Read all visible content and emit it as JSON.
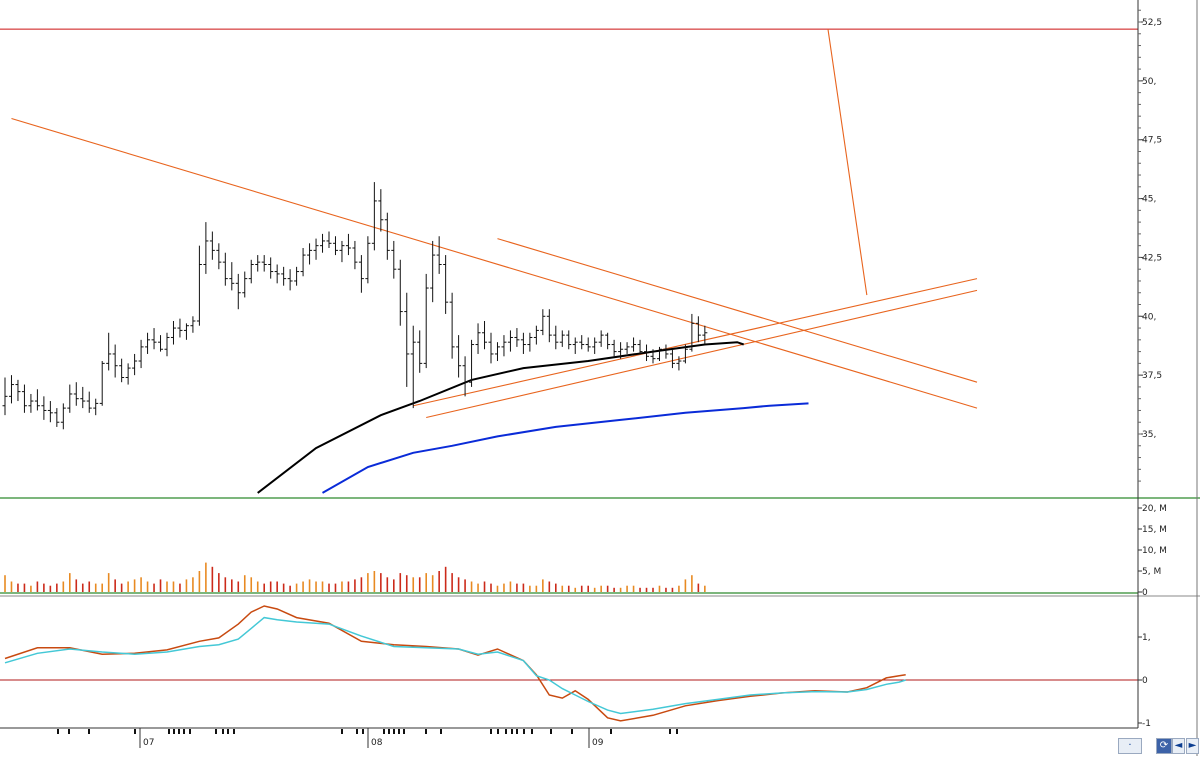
{
  "chart_data": [
    {
      "type": "candlestick",
      "panel": "price",
      "x_tick_labels": [
        "07",
        "08",
        "09"
      ],
      "y_tick_labels": [
        "52,5",
        "50,",
        "47,5",
        "45,",
        "42,5",
        "40,",
        "37,5",
        "35,"
      ],
      "ylim": [
        32.5,
        53
      ],
      "bars": [
        [
          36.2,
          37.4,
          35.8,
          36.6
        ],
        [
          36.6,
          37.5,
          36.3,
          37.1
        ],
        [
          37.1,
          37.3,
          36.4,
          36.8
        ],
        [
          36.8,
          37.1,
          35.9,
          36.2
        ],
        [
          36.2,
          36.7,
          35.9,
          36.4
        ],
        [
          36.4,
          36.9,
          36.0,
          36.2
        ],
        [
          36.2,
          36.6,
          35.6,
          36.0
        ],
        [
          36.0,
          36.4,
          35.5,
          35.9
        ],
        [
          35.9,
          36.1,
          35.3,
          35.5
        ],
        [
          35.5,
          36.3,
          35.2,
          36.1
        ],
        [
          36.1,
          37.1,
          35.9,
          36.7
        ],
        [
          36.7,
          37.2,
          36.2,
          36.5
        ],
        [
          36.5,
          37.0,
          36.1,
          36.4
        ],
        [
          36.4,
          36.8,
          35.9,
          36.1
        ],
        [
          36.1,
          36.5,
          35.8,
          36.3
        ],
        [
          36.3,
          38.1,
          36.2,
          38.0
        ],
        [
          38.0,
          39.3,
          37.7,
          38.4
        ],
        [
          38.4,
          38.8,
          37.4,
          37.9
        ],
        [
          37.9,
          38.2,
          37.2,
          37.4
        ],
        [
          37.4,
          38.0,
          37.1,
          37.8
        ],
        [
          37.8,
          38.4,
          37.5,
          38.1
        ],
        [
          38.1,
          39.0,
          37.8,
          38.7
        ],
        [
          38.7,
          39.3,
          38.4,
          39.0
        ],
        [
          39.0,
          39.5,
          38.6,
          38.9
        ],
        [
          38.9,
          39.2,
          38.5,
          38.6
        ],
        [
          38.6,
          39.3,
          38.3,
          39.1
        ],
        [
          39.1,
          39.8,
          38.8,
          39.5
        ],
        [
          39.5,
          39.9,
          39.1,
          39.4
        ],
        [
          39.4,
          39.7,
          39.0,
          39.6
        ],
        [
          39.6,
          40.0,
          39.3,
          39.8
        ],
        [
          39.8,
          43.0,
          39.6,
          42.2
        ],
        [
          42.2,
          44.0,
          41.8,
          43.2
        ],
        [
          43.2,
          43.6,
          42.4,
          42.8
        ],
        [
          42.8,
          43.1,
          42.0,
          42.3
        ],
        [
          42.3,
          42.7,
          41.3,
          41.6
        ],
        [
          41.6,
          42.3,
          41.1,
          41.4
        ],
        [
          41.4,
          41.8,
          40.3,
          41.0
        ],
        [
          41.0,
          41.9,
          40.8,
          41.6
        ],
        [
          41.6,
          42.4,
          41.4,
          42.2
        ],
        [
          42.2,
          42.6,
          41.9,
          42.3
        ],
        [
          42.3,
          42.6,
          41.9,
          42.2
        ],
        [
          42.2,
          42.5,
          41.6,
          41.9
        ],
        [
          41.9,
          42.2,
          41.4,
          41.8
        ],
        [
          41.8,
          42.1,
          41.3,
          41.6
        ],
        [
          41.6,
          42.0,
          41.1,
          41.5
        ],
        [
          41.5,
          42.1,
          41.3,
          41.9
        ],
        [
          41.9,
          42.9,
          41.7,
          42.6
        ],
        [
          42.6,
          43.1,
          42.2,
          42.8
        ],
        [
          42.8,
          43.3,
          42.4,
          43.0
        ],
        [
          43.0,
          43.5,
          42.7,
          43.2
        ],
        [
          43.2,
          43.6,
          42.9,
          43.1
        ],
        [
          43.1,
          43.4,
          42.6,
          42.8
        ],
        [
          42.8,
          43.2,
          42.3,
          43.0
        ],
        [
          43.0,
          43.5,
          42.6,
          42.9
        ],
        [
          42.9,
          43.2,
          42.0,
          42.3
        ],
        [
          42.3,
          42.6,
          41.0,
          41.6
        ],
        [
          41.6,
          43.4,
          41.4,
          43.1
        ],
        [
          43.1,
          45.7,
          42.8,
          44.9
        ],
        [
          44.9,
          45.4,
          43.6,
          44.1
        ],
        [
          44.1,
          44.4,
          42.4,
          42.8
        ],
        [
          42.8,
          43.2,
          41.6,
          42.0
        ],
        [
          42.0,
          42.4,
          39.6,
          40.2
        ],
        [
          40.2,
          41.0,
          37.0,
          38.4
        ],
        [
          38.4,
          39.6,
          36.1,
          38.9
        ],
        [
          38.9,
          39.4,
          37.6,
          38.0
        ],
        [
          38.0,
          41.8,
          37.8,
          41.2
        ],
        [
          41.2,
          43.2,
          40.6,
          42.6
        ],
        [
          42.6,
          43.4,
          41.8,
          42.2
        ],
        [
          42.2,
          42.6,
          40.1,
          40.6
        ],
        [
          40.6,
          41.0,
          38.2,
          38.7
        ],
        [
          38.7,
          39.2,
          37.4,
          37.9
        ],
        [
          37.9,
          38.3,
          36.6,
          37.2
        ],
        [
          37.2,
          39.0,
          37.0,
          38.8
        ],
        [
          38.8,
          39.7,
          38.4,
          39.3
        ],
        [
          39.3,
          39.8,
          38.6,
          38.9
        ],
        [
          38.9,
          39.3,
          38.0,
          38.4
        ],
        [
          38.4,
          38.9,
          38.1,
          38.7
        ],
        [
          38.7,
          39.2,
          38.3,
          38.9
        ],
        [
          38.9,
          39.4,
          38.5,
          39.1
        ],
        [
          39.1,
          39.5,
          38.7,
          39.0
        ],
        [
          39.0,
          39.3,
          38.4,
          38.8
        ],
        [
          38.8,
          39.3,
          38.5,
          39.1
        ],
        [
          39.1,
          39.6,
          38.8,
          39.4
        ],
        [
          39.4,
          40.3,
          39.2,
          40.0
        ],
        [
          40.0,
          40.3,
          38.9,
          39.2
        ],
        [
          39.2,
          39.6,
          38.6,
          38.9
        ],
        [
          38.9,
          39.4,
          38.7,
          39.2
        ],
        [
          39.2,
          39.4,
          38.6,
          38.8
        ],
        [
          38.8,
          39.1,
          38.4,
          38.9
        ],
        [
          38.9,
          39.2,
          38.6,
          38.8
        ],
        [
          38.8,
          39.1,
          38.5,
          38.7
        ],
        [
          38.7,
          39.1,
          38.4,
          38.9
        ],
        [
          38.9,
          39.4,
          38.7,
          39.2
        ],
        [
          39.2,
          39.3,
          38.6,
          38.8
        ],
        [
          38.8,
          39.0,
          38.3,
          38.5
        ],
        [
          38.5,
          38.9,
          38.2,
          38.6
        ],
        [
          38.6,
          38.9,
          38.4,
          38.7
        ],
        [
          38.7,
          39.1,
          38.5,
          38.8
        ],
        [
          38.8,
          39.0,
          38.4,
          38.5
        ],
        [
          38.5,
          38.8,
          38.1,
          38.3
        ],
        [
          38.3,
          38.6,
          38.0,
          38.2
        ],
        [
          38.2,
          38.7,
          38.1,
          38.6
        ],
        [
          38.6,
          38.8,
          38.2,
          38.4
        ],
        [
          38.4,
          38.6,
          37.8,
          38.0
        ],
        [
          38.0,
          38.3,
          37.7,
          38.1
        ],
        [
          38.1,
          38.8,
          38.0,
          38.6
        ],
        [
          38.6,
          40.1,
          38.5,
          39.7
        ],
        [
          39.7,
          40.0,
          38.9,
          39.2
        ],
        [
          39.2,
          39.6,
          38.8,
          39.3
        ]
      ],
      "lines": [
        {
          "points": [
            [
              1,
              48.4
            ],
            [
              150,
              36.1
            ]
          ]
        },
        {
          "points": [
            [
              76,
              43.3
            ],
            [
              150,
              37.2
            ]
          ]
        },
        {
          "points": [
            [
              65,
              35.7
            ],
            [
              150,
              41.1
            ]
          ]
        },
        {
          "points": [
            [
              63,
              36.2
            ],
            [
              150,
              41.6
            ]
          ]
        },
        {
          "points": [
            [
              127,
              52.2
            ],
            [
              133,
              40.9
            ]
          ]
        }
      ],
      "horizontal_line": 52.2,
      "moving_averages": [
        {
          "color": "#000000",
          "points": [
            [
              39,
              32.5
            ],
            [
              48,
              34.4
            ],
            [
              58,
              35.8
            ],
            [
              64,
              36.4
            ],
            [
              72,
              37.3
            ],
            [
              80,
              37.8
            ],
            [
              90,
              38.1
            ],
            [
              100,
              38.5
            ],
            [
              108,
              38.8
            ],
            [
              113,
              38.9
            ],
            [
              114,
              38.8
            ]
          ]
        },
        {
          "color": "#0a2bd8",
          "points": [
            [
              49,
              32.5
            ],
            [
              56,
              33.6
            ],
            [
              63,
              34.2
            ],
            [
              69,
              34.5
            ],
            [
              76,
              34.9
            ],
            [
              85,
              35.3
            ],
            [
              95,
              35.6
            ],
            [
              105,
              35.9
            ],
            [
              114,
              36.1
            ],
            [
              118,
              36.2
            ],
            [
              124,
              36.3
            ]
          ]
        }
      ]
    },
    {
      "type": "bar",
      "panel": "volume",
      "y_tick_labels": [
        "20, M",
        "15, M",
        "10, M",
        "5, M",
        "0"
      ],
      "ylim": [
        0,
        22
      ],
      "values": [
        4,
        2.5,
        2,
        2,
        1.5,
        2.5,
        2,
        1.5,
        2,
        2.5,
        4.5,
        3,
        2,
        2.5,
        2,
        2,
        4.5,
        3,
        2,
        2.5,
        3,
        3.5,
        2.5,
        2,
        3,
        2.5,
        2.5,
        2,
        3,
        3.5,
        5,
        7,
        6,
        4.5,
        3.5,
        3,
        2.5,
        4,
        3.5,
        2.5,
        2,
        2.5,
        2.5,
        2,
        1.5,
        2,
        2.5,
        3,
        2.5,
        2.5,
        2,
        2,
        2.5,
        2.5,
        3,
        3.5,
        4.5,
        5,
        4.5,
        3.5,
        3,
        4.5,
        4,
        3.5,
        3.5,
        4.5,
        4,
        5,
        6,
        4.5,
        3.5,
        3,
        2.5,
        2,
        2.5,
        2,
        1.5,
        2,
        2.5,
        2,
        2,
        1.5,
        1.5,
        3,
        2.5,
        2,
        1.5,
        1.5,
        1,
        1.5,
        1.5,
        1,
        1.5,
        1.5,
        1,
        1,
        1.5,
        1.5,
        1,
        1,
        1,
        1.5,
        1,
        1,
        1.5,
        3,
        4,
        2,
        1.5
      ]
    },
    {
      "type": "line",
      "panel": "oscillator",
      "y_tick_labels": [
        "1,",
        "0",
        "-1"
      ],
      "ylim": [
        -1.05,
        1.95
      ],
      "zero_line": 0,
      "series": [
        {
          "color": "#c84a10",
          "points": [
            [
              0,
              0.5
            ],
            [
              5,
              0.75
            ],
            [
              10,
              0.75
            ],
            [
              15,
              0.6
            ],
            [
              20,
              0.62
            ],
            [
              25,
              0.7
            ],
            [
              30,
              0.9
            ],
            [
              33,
              0.98
            ],
            [
              36,
              1.3
            ],
            [
              38,
              1.58
            ],
            [
              40,
              1.72
            ],
            [
              42,
              1.65
            ],
            [
              45,
              1.45
            ],
            [
              50,
              1.32
            ],
            [
              55,
              0.9
            ],
            [
              60,
              0.82
            ],
            [
              65,
              0.78
            ],
            [
              70,
              0.72
            ],
            [
              73,
              0.58
            ],
            [
              76,
              0.72
            ],
            [
              80,
              0.45
            ],
            [
              82,
              0.12
            ],
            [
              84,
              -0.35
            ],
            [
              86,
              -0.42
            ],
            [
              88,
              -0.25
            ],
            [
              90,
              -0.45
            ],
            [
              93,
              -0.88
            ],
            [
              95,
              -0.95
            ],
            [
              100,
              -0.82
            ],
            [
              105,
              -0.6
            ],
            [
              110,
              -0.48
            ],
            [
              115,
              -0.38
            ],
            [
              120,
              -0.3
            ],
            [
              125,
              -0.25
            ],
            [
              130,
              -0.28
            ],
            [
              133,
              -0.18
            ],
            [
              136,
              0.05
            ],
            [
              138,
              0.1
            ],
            [
              139,
              0.12
            ]
          ]
        },
        {
          "color": "#44c8d6",
          "points": [
            [
              0,
              0.4
            ],
            [
              5,
              0.62
            ],
            [
              10,
              0.72
            ],
            [
              15,
              0.65
            ],
            [
              20,
              0.6
            ],
            [
              25,
              0.65
            ],
            [
              30,
              0.78
            ],
            [
              33,
              0.82
            ],
            [
              36,
              0.95
            ],
            [
              38,
              1.2
            ],
            [
              40,
              1.45
            ],
            [
              42,
              1.4
            ],
            [
              45,
              1.35
            ],
            [
              50,
              1.3
            ],
            [
              55,
              1.02
            ],
            [
              60,
              0.78
            ],
            [
              65,
              0.75
            ],
            [
              70,
              0.72
            ],
            [
              73,
              0.6
            ],
            [
              76,
              0.65
            ],
            [
              80,
              0.45
            ],
            [
              82,
              0.1
            ],
            [
              84,
              0.0
            ],
            [
              86,
              -0.2
            ],
            [
              88,
              -0.35
            ],
            [
              90,
              -0.5
            ],
            [
              93,
              -0.7
            ],
            [
              95,
              -0.78
            ],
            [
              100,
              -0.68
            ],
            [
              105,
              -0.55
            ],
            [
              110,
              -0.45
            ],
            [
              115,
              -0.35
            ],
            [
              120,
              -0.3
            ],
            [
              125,
              -0.27
            ],
            [
              130,
              -0.28
            ],
            [
              133,
              -0.22
            ],
            [
              136,
              -0.1
            ],
            [
              138,
              -0.05
            ],
            [
              139,
              0.0
            ]
          ]
        }
      ]
    }
  ],
  "ui": {
    "nav_left_label": "◄",
    "nav_right_label": "►",
    "sync_label": "⟳",
    "scroll_dot_label": "·"
  },
  "colors": {
    "price_bar": "#111111",
    "trendline": "#e8641e",
    "hline": "#cc1111",
    "volume_up": "#e88a22",
    "volume_down": "#cc2a1a",
    "separator": "#2e8b2e"
  }
}
